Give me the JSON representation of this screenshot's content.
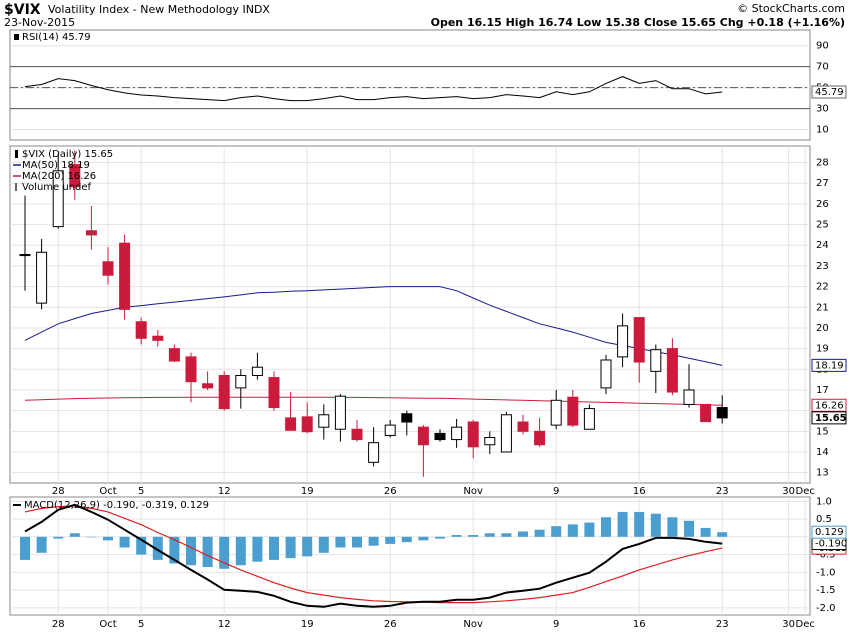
{
  "header": {
    "symbol": "$VIX",
    "name": "Volatility Index - New Methodology INDX",
    "date": "23-Nov-2015",
    "quote": "Open 16.15  High 16.74  Low 15.38  Close 15.65  Chg +0.18 (+1.16%)",
    "credit": "© StockCharts.com"
  },
  "chart_data": [
    {
      "type": "line",
      "ylim": [
        0,
        105
      ],
      "yticks": [
        10,
        30,
        50,
        70,
        90
      ],
      "levels": [
        {
          "value": 70,
          "style": "solid"
        },
        {
          "value": 50,
          "style": "dashdot"
        },
        {
          "value": 30,
          "style": "solid"
        }
      ],
      "series": [
        {
          "name": "RSI(14) 45.79",
          "color": "#000000",
          "values": [
            51,
            53,
            58.6,
            56.7,
            52,
            48,
            45,
            43,
            42,
            40.5,
            39.5,
            38.6,
            37.6,
            40.5,
            42,
            39.5,
            37.6,
            37.6,
            39.5,
            42,
            38.6,
            38.6,
            40.5,
            41.4,
            39.5,
            40.5,
            41.4,
            39.5,
            40.5,
            43.3,
            42,
            40.5,
            46,
            43.3,
            46,
            54,
            60.5,
            54,
            56.7,
            49,
            49,
            44,
            45.79,
            null,
            null,
            null,
            null,
            null
          ],
          "value_labels": [
            null,
            null,
            null,
            null,
            null,
            null,
            null,
            null,
            null,
            null,
            null,
            null,
            null,
            null,
            null,
            null,
            null,
            null,
            null,
            null,
            null,
            null,
            null,
            null,
            null,
            null,
            null,
            null,
            null,
            null,
            null,
            null,
            null,
            null,
            null,
            null,
            null,
            null,
            null,
            null,
            null,
            null,
            "45.79",
            null,
            null,
            null,
            null,
            null
          ]
        }
      ]
    },
    {
      "type": "candlestick",
      "name": "$VIX (Daily) 15.65",
      "volume_legend": "Volume undef",
      "colors": {
        "hollow": "#ffffff",
        "up": "#000000",
        "down": "#cc1a3c"
      },
      "ylim": [
        12.5,
        28.8
      ],
      "yticks": [
        13,
        14,
        15,
        16,
        17,
        18,
        19,
        20,
        21,
        22,
        23,
        24,
        25,
        26,
        27,
        28
      ],
      "categories": [
        null,
        null,
        "28",
        null,
        null,
        "Oct",
        null,
        "5",
        null,
        null,
        null,
        null,
        "12",
        null,
        null,
        null,
        null,
        "19",
        null,
        null,
        null,
        null,
        "26",
        null,
        null,
        null,
        null,
        "Nov",
        null,
        null,
        null,
        null,
        "9",
        null,
        null,
        null,
        null,
        "16",
        null,
        null,
        null,
        null,
        "23",
        null,
        null,
        null,
        "30",
        "Dec"
      ],
      "open": [
        23.55,
        21.2,
        24.9,
        27.9,
        24.7,
        23.2,
        24.1,
        20.3,
        19.6,
        19.0,
        18.6,
        17.3,
        17.7,
        17.1,
        17.7,
        17.6,
        15.65,
        15.7,
        15.2,
        15.1,
        15.1,
        13.5,
        14.8,
        15.85,
        15.2,
        14.9,
        14.6,
        15.45,
        14.35,
        14.0,
        15.45,
        15.0,
        15.3,
        16.65,
        15.1,
        17.1,
        18.6,
        20.5,
        17.9,
        19.0,
        16.3,
        16.3,
        16.15,
        null,
        null,
        null,
        null,
        null
      ],
      "high": [
        26.4,
        24.3,
        28.4,
        28.6,
        25.9,
        23.9,
        24.5,
        20.5,
        19.9,
        19.2,
        18.8,
        17.9,
        17.9,
        18.0,
        18.8,
        17.9,
        16.9,
        16.4,
        16.3,
        16.8,
        15.55,
        15.2,
        15.55,
        16.0,
        15.3,
        15.1,
        15.6,
        15.55,
        15.0,
        15.95,
        15.8,
        15.65,
        17.0,
        17.0,
        16.3,
        18.7,
        20.7,
        20.5,
        19.2,
        19.5,
        18.25,
        16.3,
        16.74,
        null,
        null,
        null,
        null,
        null
      ],
      "low": [
        21.8,
        20.9,
        24.8,
        26.2,
        23.8,
        22.1,
        20.4,
        19.2,
        19.1,
        18.35,
        16.4,
        17.0,
        16.0,
        16.1,
        17.5,
        16.0,
        15.05,
        14.9,
        14.6,
        14.5,
        14.5,
        13.3,
        14.7,
        14.8,
        12.8,
        14.5,
        14.2,
        13.7,
        13.9,
        14.0,
        14.85,
        14.25,
        15.1,
        15.2,
        15.1,
        16.8,
        18.1,
        17.35,
        16.85,
        16.75,
        16.15,
        15.45,
        15.38,
        null,
        null,
        null,
        null,
        null
      ],
      "close": [
        23.5,
        23.66,
        27.6,
        26.83,
        24.5,
        22.55,
        20.9,
        19.5,
        19.4,
        18.4,
        17.4,
        17.1,
        16.1,
        17.7,
        18.1,
        16.15,
        15.05,
        14.98,
        15.8,
        16.7,
        14.6,
        14.45,
        15.3,
        15.45,
        14.35,
        14.6,
        15.2,
        14.25,
        14.7,
        15.8,
        15.0,
        14.35,
        16.5,
        15.3,
        16.1,
        18.45,
        20.1,
        18.35,
        18.95,
        16.9,
        17.0,
        15.47,
        15.65,
        null,
        null,
        null,
        null,
        null
      ],
      "close_labels": [
        null,
        null,
        null,
        null,
        null,
        null,
        null,
        null,
        null,
        null,
        null,
        null,
        null,
        null,
        null,
        null,
        null,
        null,
        null,
        null,
        null,
        null,
        null,
        null,
        null,
        null,
        null,
        null,
        null,
        null,
        null,
        null,
        null,
        null,
        null,
        null,
        null,
        null,
        null,
        null,
        null,
        null,
        "15.65",
        null,
        null,
        null,
        null,
        null
      ],
      "series": [
        {
          "name": "MA(50) 18.19",
          "color": "#1a1a8c",
          "values": [
            19.4,
            19.8,
            20.2,
            20.45,
            20.7,
            20.85,
            21.0,
            21.08,
            21.17,
            21.25,
            21.33,
            21.42,
            21.5,
            21.6,
            21.7,
            21.73,
            21.77,
            21.8,
            21.84,
            21.88,
            21.92,
            21.96,
            22.0,
            22.0,
            22.0,
            22.0,
            21.8,
            21.45,
            21.1,
            20.8,
            20.5,
            20.2,
            20.0,
            19.8,
            19.55,
            19.3,
            19.15,
            19.0,
            18.85,
            18.7,
            18.53,
            18.36,
            18.19,
            null,
            null,
            null,
            null,
            null
          ],
          "value_labels": [
            null,
            null,
            null,
            null,
            null,
            null,
            null,
            null,
            null,
            null,
            null,
            null,
            null,
            null,
            null,
            null,
            null,
            null,
            null,
            null,
            null,
            null,
            null,
            null,
            null,
            null,
            null,
            null,
            null,
            null,
            null,
            null,
            null,
            null,
            null,
            null,
            null,
            null,
            null,
            null,
            null,
            null,
            "18.19",
            null,
            null,
            null,
            null,
            null
          ]
        },
        {
          "name": "MA(200) 16.26",
          "color": "#cc1a3c",
          "values": [
            16.5,
            16.53,
            16.56,
            16.58,
            16.6,
            16.61,
            16.62,
            16.63,
            16.64,
            16.64,
            16.65,
            16.65,
            16.65,
            16.65,
            16.65,
            16.65,
            16.65,
            16.65,
            16.65,
            16.64,
            16.64,
            16.63,
            16.62,
            16.61,
            16.6,
            16.6,
            16.58,
            16.56,
            16.54,
            16.52,
            16.5,
            16.48,
            16.46,
            16.44,
            16.42,
            16.4,
            16.38,
            16.36,
            16.34,
            16.32,
            16.3,
            16.28,
            16.26,
            null,
            null,
            null,
            null,
            null
          ],
          "value_labels": [
            null,
            null,
            null,
            null,
            null,
            null,
            null,
            null,
            null,
            null,
            null,
            null,
            null,
            null,
            null,
            null,
            null,
            null,
            null,
            null,
            null,
            null,
            null,
            null,
            null,
            null,
            null,
            null,
            null,
            null,
            null,
            null,
            null,
            null,
            null,
            null,
            null,
            null,
            null,
            null,
            null,
            null,
            "16.26",
            null,
            null,
            null,
            null,
            null
          ]
        }
      ]
    },
    {
      "type": "macd",
      "title": "MACD(12,26,9) -0.190, -0.319, 0.129",
      "ylim": [
        -2.2,
        1.12
      ],
      "yticks": [
        {
          "value": 1,
          "label": "1.0"
        },
        {
          "value": 0.5,
          "label": "0.5"
        },
        {
          "value": 0,
          "label": "0.0"
        },
        {
          "value": -0.5,
          "label": "-0.5"
        },
        {
          "value": -1,
          "label": "-1.0"
        },
        {
          "value": -1.5,
          "label": "-1.5"
        },
        {
          "value": -2,
          "label": "-2.0"
        }
      ],
      "categories": [
        null,
        null,
        "28",
        null,
        null,
        "Oct",
        null,
        "5",
        null,
        null,
        null,
        null,
        "12",
        null,
        null,
        null,
        null,
        "19",
        null,
        null,
        null,
        null,
        "26",
        null,
        null,
        null,
        null,
        "Nov",
        null,
        null,
        null,
        null,
        "9",
        null,
        null,
        null,
        null,
        "16",
        null,
        null,
        null,
        null,
        "23",
        null,
        null,
        null,
        "30",
        "Dec"
      ],
      "series": [
        {
          "style": "bar",
          "color": "#4a9fd0",
          "values": [
            -0.65,
            -0.45,
            -0.05,
            0.1,
            0,
            -0.1,
            -0.3,
            -0.5,
            -0.65,
            -0.75,
            -0.8,
            -0.85,
            -0.9,
            -0.8,
            -0.7,
            -0.65,
            -0.6,
            -0.55,
            -0.45,
            -0.3,
            -0.3,
            -0.25,
            -0.2,
            -0.15,
            -0.1,
            -0.05,
            0.05,
            0.05,
            0.1,
            0.1,
            0.15,
            0.2,
            0.3,
            0.35,
            0.4,
            0.55,
            0.7,
            0.7,
            0.65,
            0.55,
            0.45,
            0.25,
            0.129,
            null,
            null,
            null,
            null,
            null
          ],
          "value_labels": [
            null,
            null,
            null,
            null,
            null,
            null,
            null,
            null,
            null,
            null,
            null,
            null,
            null,
            null,
            null,
            null,
            null,
            null,
            null,
            null,
            null,
            null,
            null,
            null,
            null,
            null,
            null,
            null,
            null,
            null,
            null,
            null,
            null,
            null,
            null,
            null,
            null,
            null,
            null,
            null,
            null,
            null,
            "0.129",
            null,
            null,
            null,
            null,
            null
          ]
        },
        {
          "style": "line",
          "color": "#e02020",
          "values": [
            0.7,
            0.8,
            0.85,
            0.87,
            0.8,
            0.7,
            0.52,
            0.34,
            0.12,
            -0.08,
            -0.3,
            -0.53,
            -0.73,
            -0.93,
            -1.11,
            -1.29,
            -1.44,
            -1.57,
            -1.64,
            -1.71,
            -1.76,
            -1.8,
            -1.82,
            -1.83,
            -1.84,
            -1.85,
            -1.85,
            -1.85,
            -1.83,
            -1.8,
            -1.76,
            -1.71,
            -1.64,
            -1.57,
            -1.42,
            -1.26,
            -1.1,
            -0.93,
            -0.79,
            -0.65,
            -0.53,
            -0.42,
            -0.319,
            null,
            null,
            null,
            null,
            null
          ],
          "value_labels": [
            null,
            null,
            null,
            null,
            null,
            null,
            null,
            null,
            null,
            null,
            null,
            null,
            null,
            null,
            null,
            null,
            null,
            null,
            null,
            null,
            null,
            null,
            null,
            null,
            null,
            null,
            null,
            null,
            null,
            null,
            null,
            null,
            null,
            null,
            null,
            null,
            null,
            null,
            null,
            null,
            null,
            null,
            "-0.319",
            null,
            null,
            null,
            null,
            null
          ]
        },
        {
          "style": "line",
          "color": "#000000",
          "values": [
            0.15,
            0.42,
            0.76,
            0.9,
            0.7,
            0.48,
            0.2,
            -0.08,
            -0.37,
            -0.65,
            -0.93,
            -1.2,
            -1.49,
            -1.52,
            -1.55,
            -1.66,
            -1.83,
            -1.94,
            -1.97,
            -1.88,
            -1.94,
            -1.97,
            -1.94,
            -1.85,
            -1.83,
            -1.83,
            -1.77,
            -1.77,
            -1.71,
            -1.57,
            -1.52,
            -1.46,
            -1.29,
            -1.15,
            -1.01,
            -0.7,
            -0.34,
            -0.2,
            -0.03,
            -0.03,
            -0.06,
            -0.14,
            -0.19,
            null,
            null,
            null,
            null,
            null
          ],
          "value_labels": [
            null,
            null,
            null,
            null,
            null,
            null,
            null,
            null,
            null,
            null,
            null,
            null,
            null,
            null,
            null,
            null,
            null,
            null,
            null,
            null,
            null,
            null,
            null,
            null,
            null,
            null,
            null,
            null,
            null,
            null,
            null,
            null,
            null,
            null,
            null,
            null,
            null,
            null,
            null,
            null,
            null,
            null,
            "-0.190",
            null,
            null,
            null,
            null,
            null
          ]
        }
      ]
    }
  ]
}
